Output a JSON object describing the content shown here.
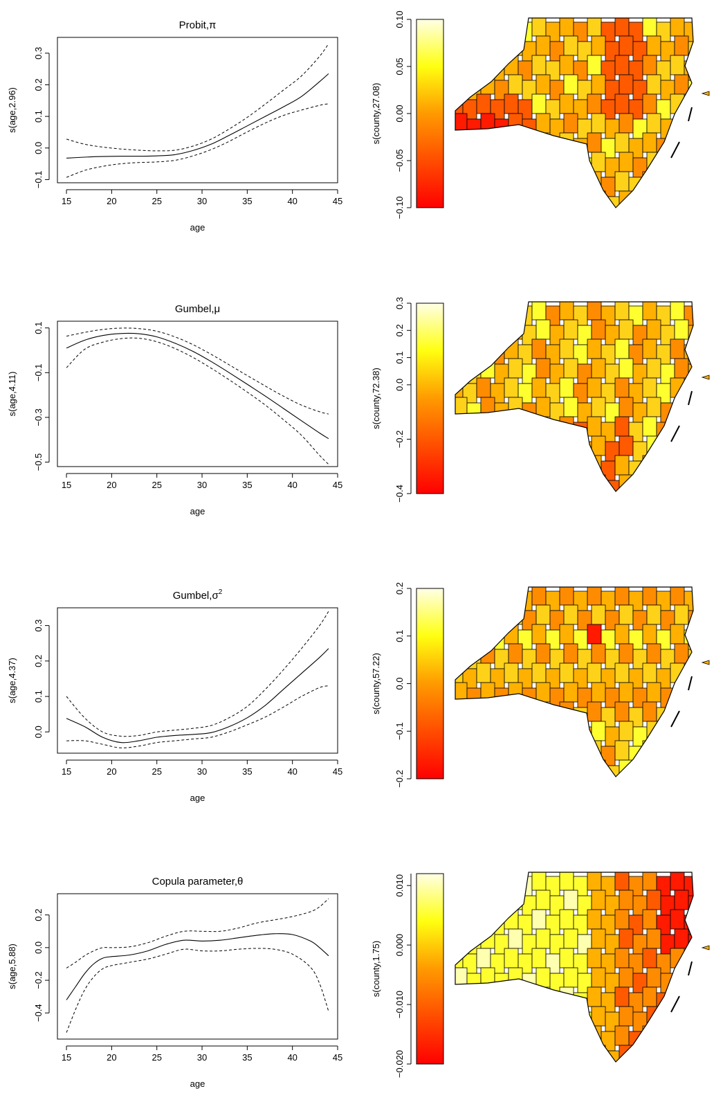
{
  "chart_data": [
    {
      "type": "line",
      "title": "Probit,π",
      "title_main": "Probit,",
      "title_symbol": "π",
      "title_superscript": "",
      "xlabel": "age",
      "ylabel": "s(age,2.96)",
      "xlim": [
        14,
        45
      ],
      "ylim": [
        -0.11,
        0.35
      ],
      "xticks": [
        15,
        20,
        25,
        30,
        35,
        40,
        45
      ],
      "yticks": [
        -0.1,
        0.0,
        0.1,
        0.2,
        0.3
      ],
      "ytick_labels": [
        "−0.1",
        "0.0",
        "0.1",
        "0.2",
        "0.3"
      ],
      "grid": false,
      "x": [
        15,
        17,
        19,
        21,
        23,
        25,
        27,
        29,
        31,
        33,
        35,
        37,
        39,
        41,
        43,
        44
      ],
      "series": [
        {
          "role": "estimate",
          "values": [
            -0.032,
            -0.029,
            -0.027,
            -0.026,
            -0.026,
            -0.025,
            -0.021,
            -0.008,
            0.012,
            0.04,
            0.07,
            0.1,
            0.13,
            0.163,
            0.21,
            0.235
          ]
        },
        {
          "role": "upper",
          "values": [
            0.028,
            0.012,
            0.003,
            -0.003,
            -0.007,
            -0.009,
            -0.007,
            0.006,
            0.028,
            0.06,
            0.097,
            0.139,
            0.183,
            0.228,
            0.29,
            0.33
          ]
        },
        {
          "role": "lower",
          "values": [
            -0.093,
            -0.071,
            -0.058,
            -0.05,
            -0.046,
            -0.044,
            -0.039,
            -0.025,
            -0.005,
            0.021,
            0.051,
            0.079,
            0.103,
            0.12,
            0.135,
            0.14
          ]
        }
      ]
    },
    {
      "type": "line",
      "title": "Gumbel,μ",
      "title_main": "Gumbel,",
      "title_symbol": "μ",
      "title_superscript": "",
      "xlabel": "age",
      "ylabel": "s(age,4.11)",
      "xlim": [
        14,
        45
      ],
      "ylim": [
        -0.52,
        0.13
      ],
      "xticks": [
        15,
        20,
        25,
        30,
        35,
        40,
        45
      ],
      "yticks": [
        -0.5,
        -0.3,
        -0.1,
        0.1
      ],
      "ytick_labels": [
        "−0.5",
        "−0.3",
        "−0.1",
        "0.1"
      ],
      "grid": false,
      "x": [
        15,
        17,
        19,
        21,
        23,
        25,
        27,
        29,
        31,
        33,
        35,
        37,
        39,
        41,
        43,
        44
      ],
      "series": [
        {
          "role": "estimate",
          "values": [
            0.01,
            0.045,
            0.066,
            0.075,
            0.074,
            0.06,
            0.032,
            -0.005,
            -0.05,
            -0.1,
            -0.152,
            -0.205,
            -0.26,
            -0.315,
            -0.37,
            -0.395
          ]
        },
        {
          "role": "upper",
          "values": [
            0.063,
            0.08,
            0.093,
            0.099,
            0.097,
            0.085,
            0.06,
            0.025,
            -0.018,
            -0.065,
            -0.113,
            -0.16,
            -0.205,
            -0.245,
            -0.275,
            -0.285
          ]
        },
        {
          "role": "lower",
          "values": [
            -0.078,
            0.004,
            0.036,
            0.052,
            0.054,
            0.038,
            0.008,
            -0.032,
            -0.08,
            -0.132,
            -0.187,
            -0.245,
            -0.31,
            -0.38,
            -0.47,
            -0.51
          ]
        }
      ]
    },
    {
      "type": "line",
      "title": "Gumbel,σ²",
      "title_main": "Gumbel,",
      "title_symbol": "σ",
      "title_superscript": "2",
      "xlabel": "age",
      "ylabel": "s(age,4.37)",
      "xlim": [
        14,
        45
      ],
      "ylim": [
        -0.06,
        0.35
      ],
      "xticks": [
        15,
        20,
        25,
        30,
        35,
        40,
        45
      ],
      "yticks": [
        0.0,
        0.1,
        0.2,
        0.3
      ],
      "ytick_labels": [
        "0.0",
        "0.1",
        "0.2",
        "0.3"
      ],
      "grid": false,
      "x": [
        15,
        17,
        19,
        21,
        23,
        25,
        27,
        29,
        31,
        33,
        35,
        37,
        39,
        41,
        43,
        44
      ],
      "series": [
        {
          "role": "estimate",
          "values": [
            0.038,
            0.015,
            -0.015,
            -0.03,
            -0.025,
            -0.015,
            -0.01,
            -0.007,
            -0.002,
            0.015,
            0.04,
            0.075,
            0.12,
            0.165,
            0.21,
            0.235
          ]
        },
        {
          "role": "upper",
          "values": [
            0.1,
            0.04,
            0.0,
            -0.012,
            -0.01,
            0.0,
            0.005,
            0.01,
            0.018,
            0.04,
            0.072,
            0.12,
            0.175,
            0.235,
            0.3,
            0.34
          ]
        },
        {
          "role": "lower",
          "values": [
            -0.025,
            -0.025,
            -0.035,
            -0.045,
            -0.04,
            -0.03,
            -0.025,
            -0.02,
            -0.015,
            0.0,
            0.02,
            0.042,
            0.07,
            0.1,
            0.125,
            0.13
          ]
        }
      ]
    },
    {
      "type": "line",
      "title": "Copula parameter,θ",
      "title_main": "Copula parameter,",
      "title_symbol": "θ",
      "title_superscript": "",
      "xlabel": "age",
      "ylabel": "s(age,5.88)",
      "xlim": [
        14,
        45
      ],
      "ylim": [
        -0.56,
        0.33
      ],
      "xticks": [
        15,
        20,
        25,
        30,
        35,
        40,
        45
      ],
      "yticks": [
        -0.4,
        -0.2,
        0.0,
        0.2
      ],
      "ytick_labels": [
        "−0.4",
        "−0.2",
        "0.0",
        "0.2"
      ],
      "grid": false,
      "x": [
        15,
        16,
        17,
        18,
        19,
        20,
        22,
        24,
        26,
        28,
        30,
        32,
        34,
        36,
        38,
        40,
        42,
        43,
        44
      ],
      "series": [
        {
          "role": "estimate",
          "values": [
            -0.32,
            -0.24,
            -0.16,
            -0.1,
            -0.065,
            -0.055,
            -0.045,
            -0.02,
            0.02,
            0.045,
            0.04,
            0.045,
            0.06,
            0.075,
            0.085,
            0.08,
            0.04,
            0.0,
            -0.05
          ]
        },
        {
          "role": "upper",
          "values": [
            -0.125,
            -0.09,
            -0.05,
            -0.02,
            0.0,
            0.0,
            0.005,
            0.03,
            0.07,
            0.1,
            0.1,
            0.1,
            0.12,
            0.15,
            0.17,
            0.19,
            0.22,
            0.25,
            0.3
          ]
        },
        {
          "role": "lower",
          "values": [
            -0.52,
            -0.38,
            -0.26,
            -0.18,
            -0.13,
            -0.11,
            -0.09,
            -0.07,
            -0.04,
            -0.01,
            -0.02,
            -0.02,
            -0.01,
            -0.005,
            -0.01,
            -0.04,
            -0.12,
            -0.22,
            -0.39
          ]
        }
      ]
    },
    {
      "type": "heatmap",
      "ylabel": "s(county,27.08)",
      "colorbar_ticks": [
        0.1,
        0.05,
        0.0,
        -0.05,
        -0.1
      ],
      "colorbar_labels": [
        "0.10",
        "0.05",
        "0.00",
        "−0.05",
        "−0.10"
      ],
      "range": [
        -0.1,
        0.1
      ]
    },
    {
      "type": "heatmap",
      "ylabel": "s(county,72.38)",
      "colorbar_ticks": [
        0.3,
        0.2,
        0.1,
        0.0,
        -0.2,
        -0.4
      ],
      "colorbar_labels": [
        "0.3",
        "0.2",
        "0.1",
        "0.0",
        "−0.2",
        "−0.4"
      ],
      "range": [
        -0.4,
        0.3
      ]
    },
    {
      "type": "heatmap",
      "ylabel": "s(county,57.22)",
      "colorbar_ticks": [
        0.2,
        0.1,
        0.0,
        -0.1,
        -0.2
      ],
      "colorbar_labels": [
        "0.2",
        "0.1",
        "0.0",
        "−0.1",
        "−0.2"
      ],
      "range": [
        -0.2,
        0.2
      ]
    },
    {
      "type": "heatmap",
      "ylabel": "s(county,1.75)",
      "colorbar_ticks": [
        0.01,
        0.0,
        -0.01,
        -0.02
      ],
      "colorbar_labels": [
        "0.010",
        "0.000",
        "−0.010",
        "−0.020"
      ],
      "range": [
        -0.02,
        0.012
      ]
    }
  ],
  "colors": {
    "scale_low": "#ff0000",
    "scale_mid_low": "#ff8000",
    "scale_mid": "#ffd000",
    "scale_mid_high": "#ffff20",
    "scale_high": "#ffffe0",
    "county_border": "#000000",
    "line": "#000000"
  }
}
